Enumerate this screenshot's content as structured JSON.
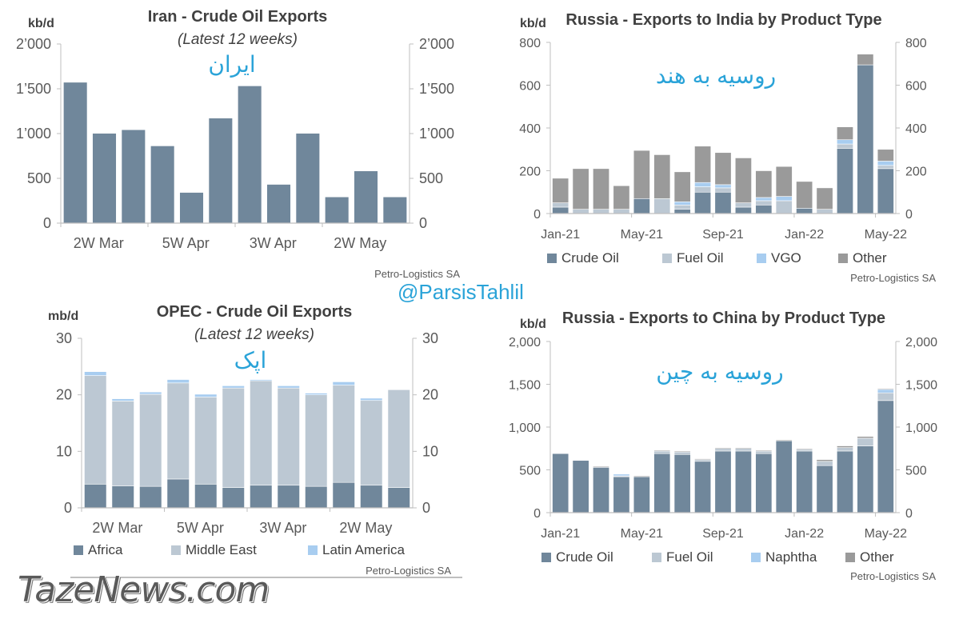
{
  "overlays": {
    "handle": "@ParsisTahlil",
    "brand": "TazeNews.com"
  },
  "chart_data": [
    {
      "type": "bar",
      "title": "Iran - Crude Oil Exports",
      "subtitle": "(Latest 12 weeks)",
      "annotation": "ایران",
      "unit": "kb/d",
      "source": "Petro-Logistics SA",
      "x_tick_labels": [
        "2W Mar",
        "5W Apr",
        "3W Apr",
        "2W May"
      ],
      "y_ticks": [
        "0",
        "500",
        "1’000",
        "1’500",
        "2’000"
      ],
      "ylim": [
        0,
        2000
      ],
      "values": [
        1570,
        1000,
        1040,
        860,
        340,
        1170,
        1530,
        430,
        1000,
        290,
        580,
        290
      ],
      "color": "#70879b"
    },
    {
      "type": "bar",
      "stacked": true,
      "title": "Russia - Exports to India by Product Type",
      "annotation": "روسیه به هند",
      "unit": "kb/d",
      "source": "Petro-Logistics SA",
      "x_tick_labels": [
        "Jan-21",
        "May-21",
        "Sep-21",
        "Jan-22",
        "May-22"
      ],
      "y_ticks": [
        "0",
        "200",
        "400",
        "600",
        "800"
      ],
      "ylim": [
        0,
        800
      ],
      "series": [
        {
          "name": "Crude Oil",
          "color": "#70879b",
          "values": [
            30,
            0,
            0,
            0,
            70,
            0,
            20,
            100,
            100,
            30,
            40,
            0,
            25,
            0,
            305,
            695,
            210
          ]
        },
        {
          "name": "Fuel Oil",
          "color": "#bcc8d3",
          "values": [
            20,
            20,
            20,
            20,
            0,
            70,
            20,
            25,
            20,
            20,
            20,
            60,
            0,
            20,
            20,
            0,
            15
          ]
        },
        {
          "name": "VGO",
          "color": "#a8cdf0",
          "values": [
            0,
            0,
            0,
            0,
            0,
            0,
            15,
            20,
            15,
            0,
            15,
            20,
            0,
            0,
            20,
            0,
            20
          ]
        },
        {
          "name": "Other",
          "color": "#9a9a9a",
          "values": [
            115,
            190,
            190,
            110,
            225,
            205,
            140,
            170,
            150,
            210,
            125,
            140,
            125,
            100,
            60,
            50,
            55
          ]
        }
      ],
      "legend_position": "bottom"
    },
    {
      "type": "bar",
      "stacked": true,
      "title": "OPEC - Crude Oil Exports",
      "subtitle": "(Latest 12 weeks)",
      "annotation": "اپک",
      "unit": "mb/d",
      "source": "Petro-Logistics SA",
      "x_tick_labels": [
        "2W Mar",
        "5W Apr",
        "3W Apr",
        "2W May"
      ],
      "y_ticks": [
        "0",
        "10",
        "20",
        "30"
      ],
      "ylim": [
        0,
        30
      ],
      "series": [
        {
          "name": "Africa",
          "color": "#70879b",
          "values": [
            4.2,
            3.9,
            3.8,
            5.1,
            4.2,
            3.6,
            4.0,
            4.0,
            3.8,
            4.5,
            4.0,
            3.6
          ]
        },
        {
          "name": "Middle East",
          "color": "#bcc8d3",
          "values": [
            19.2,
            15.0,
            16.3,
            17.0,
            15.4,
            17.6,
            18.5,
            17.2,
            16.2,
            17.2,
            15.0,
            17.3
          ]
        },
        {
          "name": "Latin America",
          "color": "#a8cdf0",
          "values": [
            0.7,
            0.4,
            0.4,
            0.6,
            0.5,
            0.4,
            0.2,
            0.4,
            0.3,
            0.6,
            0.4,
            0.0
          ]
        }
      ],
      "legend_position": "bottom"
    },
    {
      "type": "bar",
      "stacked": true,
      "title": "Russia - Exports to China by Product Type",
      "annotation": "روسیه به چین",
      "unit": "kb/d",
      "source": "Petro-Logistics SA",
      "x_tick_labels": [
        "Jan-21",
        "May-21",
        "Sep-21",
        "Jan-22",
        "May-22"
      ],
      "y_ticks": [
        "0",
        "500",
        "1,000",
        "1,500",
        "2,000"
      ],
      "ylim": [
        0,
        2000
      ],
      "series": [
        {
          "name": "Crude Oil",
          "color": "#70879b",
          "values": [
            690,
            610,
            530,
            420,
            420,
            690,
            680,
            600,
            720,
            720,
            690,
            840,
            720,
            550,
            720,
            780,
            1310
          ]
        },
        {
          "name": "Fuel Oil",
          "color": "#bcc8d3",
          "values": [
            0,
            0,
            0,
            10,
            0,
            30,
            30,
            20,
            30,
            30,
            30,
            0,
            20,
            50,
            40,
            90,
            90
          ]
        },
        {
          "name": "Naphtha",
          "color": "#a8cdf0",
          "values": [
            0,
            0,
            0,
            20,
            0,
            0,
            0,
            0,
            0,
            0,
            0,
            0,
            0,
            0,
            0,
            0,
            40
          ]
        },
        {
          "name": "Other",
          "color": "#9a9a9a",
          "values": [
            0,
            0,
            10,
            0,
            10,
            10,
            10,
            10,
            10,
            10,
            10,
            10,
            10,
            20,
            20,
            20,
            10
          ]
        }
      ],
      "legend_position": "bottom"
    }
  ]
}
